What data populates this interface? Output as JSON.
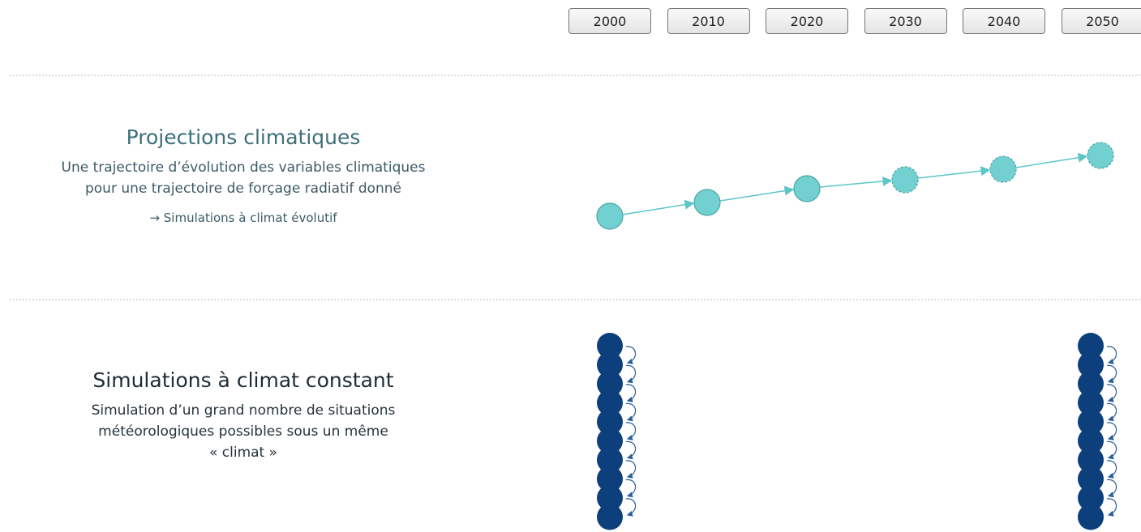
{
  "timeline": {
    "years": [
      "2000",
      "2010",
      "2020",
      "2030",
      "2040",
      "2050"
    ]
  },
  "projections": {
    "title": "Projections climatiques",
    "lines": [
      "Une trajectoire d’évolution des variables climatiques",
      "pour une trajectoire de forçage radiatif donné",
      "→ Simulations à climat évolutif"
    ]
  },
  "constant": {
    "title": "Simulations à climat constant",
    "lines": [
      "Simulation d’un grand nombre de situations",
      "météorologiques possibles sous un même",
      "« climat »"
    ]
  }
}
